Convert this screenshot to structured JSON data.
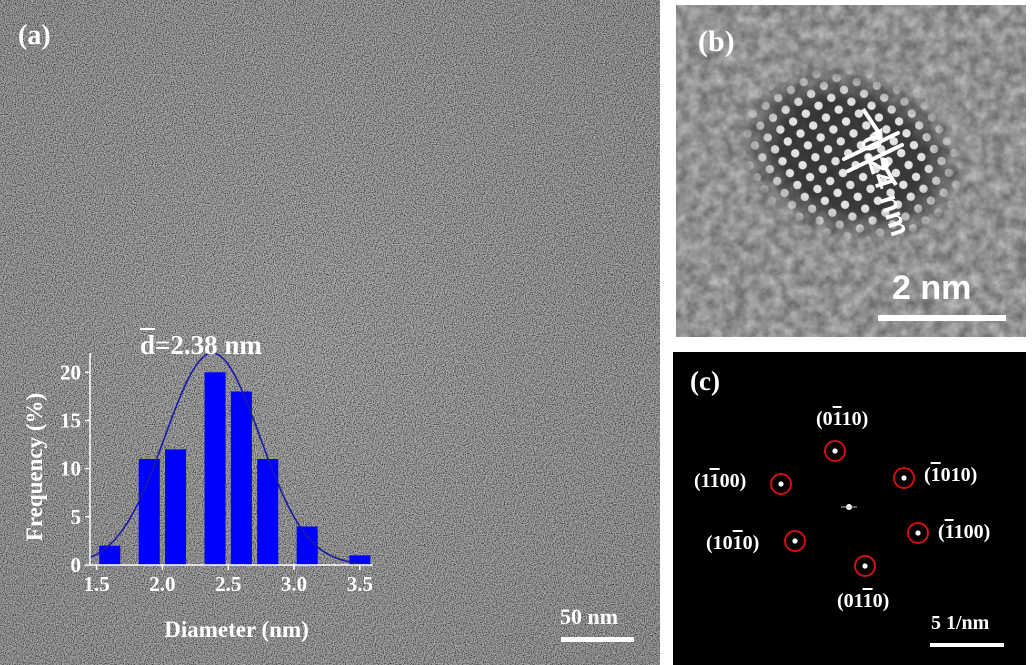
{
  "panel_a": {
    "label": "(a)",
    "scale_bar": "50 nm",
    "inset": {
      "mean_label": "=2.38 nm",
      "mean_symbol": "d"
    }
  },
  "panel_b": {
    "label": "(b)",
    "lattice_spacing": "0.24 nm",
    "scale_bar": "2 nm"
  },
  "panel_c": {
    "label": "(c)",
    "scale_bar": "5 1/nm",
    "spots": [
      {
        "h": "0",
        "bar": "1",
        "k": "10"
      },
      {
        "h": "",
        "bar": "1",
        "k": "010"
      },
      {
        "h": "",
        "bar": "1",
        "k": "100"
      },
      {
        "h": "01",
        "bar": "1",
        "k": "0"
      },
      {
        "h": "10",
        "bar": "1",
        "k": "0"
      },
      {
        "h": "1",
        "bar": "1",
        "k": "00"
      }
    ]
  },
  "chart_data": {
    "type": "bar",
    "categories": [
      "1.6",
      "1.9",
      "2.1",
      "2.4",
      "2.6",
      "2.8",
      "3.1",
      "3.5"
    ],
    "values": [
      2,
      11,
      12,
      20,
      18,
      11,
      4,
      1
    ],
    "fit": "gaussian",
    "fit_params": {
      "mean": 2.38,
      "peak": 22,
      "sigma": 0.36
    },
    "xlabel": "Diameter (nm)",
    "ylabel": "Frequency (%)",
    "xticks": [
      "1.5",
      "2.0",
      "2.5",
      "3.0",
      "3.5"
    ],
    "yticks": [
      "0",
      "5",
      "10",
      "15",
      "20"
    ],
    "xlim": [
      1.45,
      3.6
    ],
    "ylim": [
      0,
      22
    ],
    "bar_color": "#0000ff",
    "fit_color": "#1a1aa8"
  }
}
